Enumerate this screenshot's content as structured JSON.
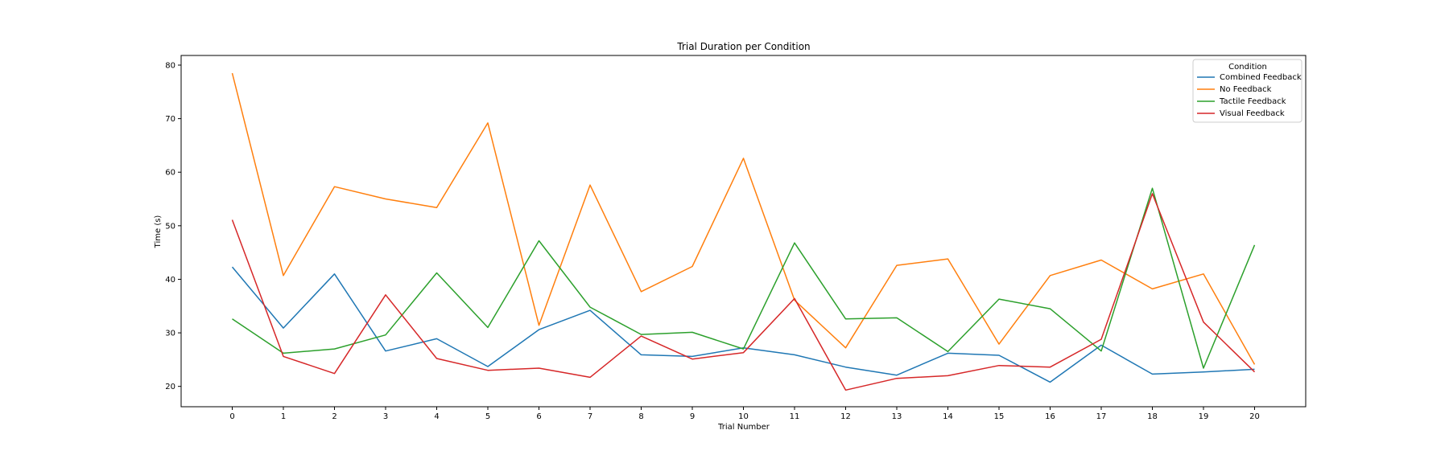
{
  "chart_data": {
    "type": "line",
    "title": "Trial Duration per Condition",
    "xlabel": "Trial Number",
    "ylabel": "Time (s)",
    "x": [
      0,
      1,
      2,
      3,
      4,
      5,
      6,
      7,
      8,
      9,
      10,
      11,
      12,
      13,
      14,
      15,
      16,
      17,
      18,
      19,
      20
    ],
    "xlim": [
      -1,
      21
    ],
    "ylim": [
      16.2,
      81.8
    ],
    "yticks": [
      20,
      30,
      40,
      50,
      60,
      70,
      80
    ],
    "grid": false,
    "legend": {
      "title": "Condition",
      "placement": "top-right"
    },
    "series": [
      {
        "name": "Combined Feedback",
        "color": "#1f77b4",
        "values": [
          42.3,
          30.9,
          41.0,
          26.6,
          28.9,
          23.7,
          30.6,
          34.2,
          25.9,
          25.6,
          27.2,
          25.9,
          23.6,
          22.1,
          26.2,
          25.8,
          20.8,
          27.7,
          22.3,
          22.7,
          23.2
        ]
      },
      {
        "name": "No Feedback",
        "color": "#ff7f0e",
        "values": [
          78.5,
          40.7,
          57.3,
          55.0,
          53.4,
          69.2,
          31.4,
          57.6,
          37.7,
          42.4,
          62.6,
          36.1,
          27.2,
          42.6,
          43.8,
          27.9,
          40.7,
          43.6,
          38.2,
          41.0,
          24.1
        ]
      },
      {
        "name": "Tactile Feedback",
        "color": "#2ca02c",
        "values": [
          32.6,
          26.2,
          27.0,
          29.6,
          41.2,
          31.0,
          47.2,
          34.8,
          29.7,
          30.1,
          27.0,
          46.8,
          32.6,
          32.8,
          26.5,
          36.3,
          34.5,
          26.6,
          57.0,
          23.4,
          46.4
        ]
      },
      {
        "name": "Visual Feedback",
        "color": "#d62728",
        "values": [
          51.1,
          25.6,
          22.4,
          37.1,
          25.2,
          23.0,
          23.4,
          21.7,
          29.4,
          25.1,
          26.3,
          36.4,
          19.3,
          21.5,
          22.0,
          23.9,
          23.6,
          28.8,
          56.0,
          32.0,
          22.7
        ]
      }
    ]
  }
}
